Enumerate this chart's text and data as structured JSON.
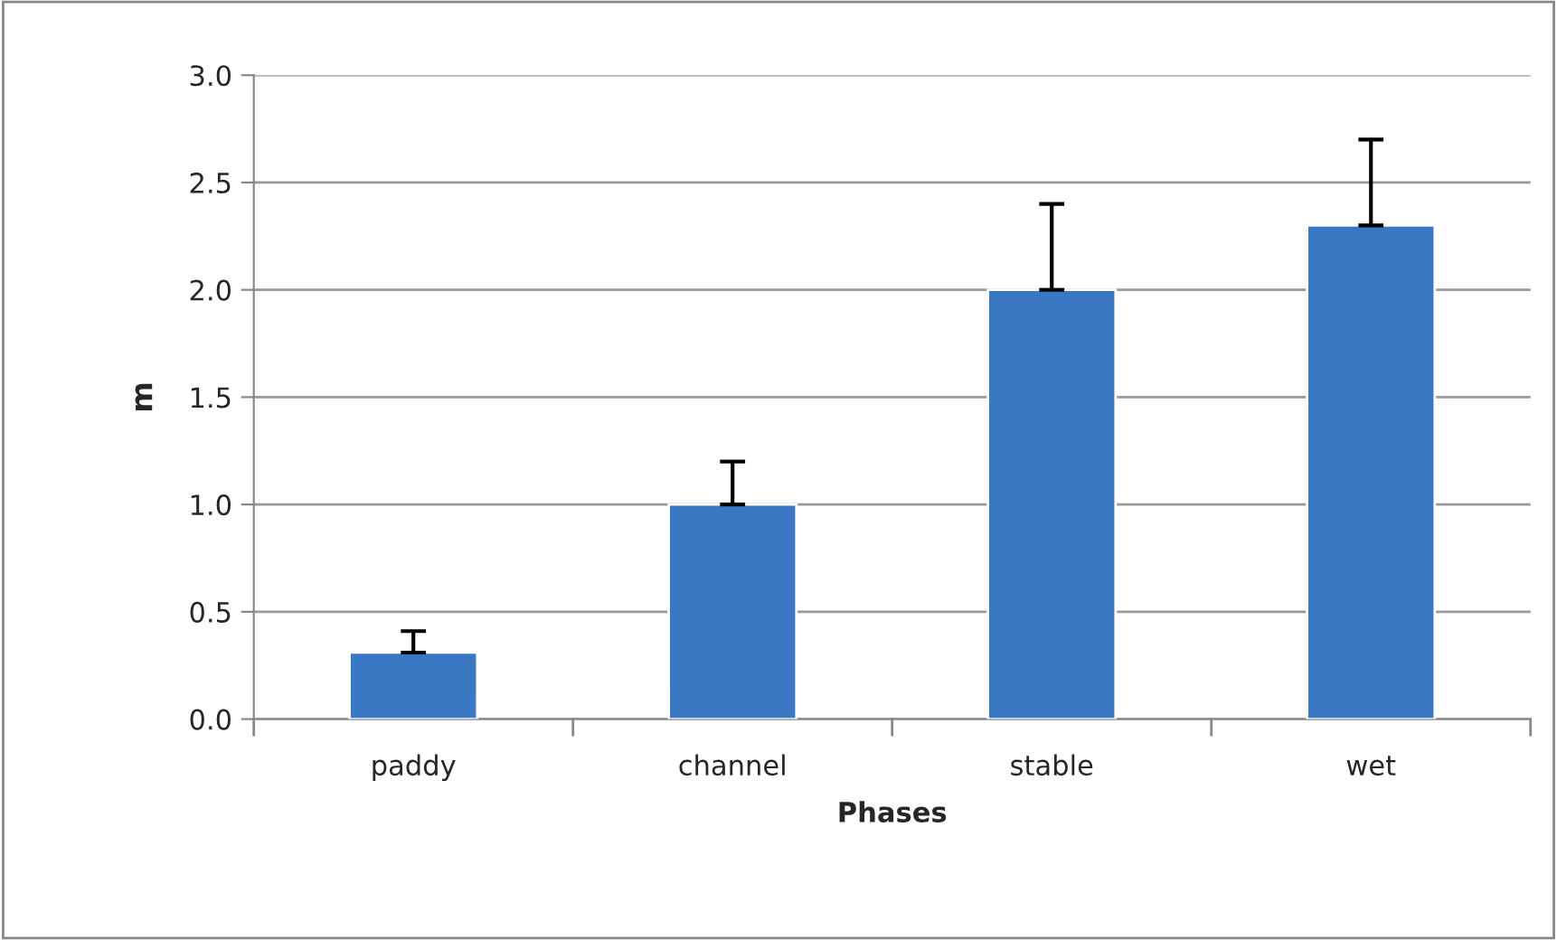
{
  "chart_data": {
    "type": "bar",
    "xlabel": "Phases",
    "ylabel": "m",
    "categories": [
      "paddy",
      "channel",
      "stable",
      "wet"
    ],
    "values": [
      0.31,
      1.0,
      2.0,
      2.3
    ],
    "errors": [
      [
        0.31,
        0.41
      ],
      [
        1.0,
        1.2
      ],
      [
        2.0,
        2.4
      ],
      [
        2.3,
        2.7
      ]
    ],
    "color": "#3a78c3",
    "ylim": [
      0,
      3.0
    ],
    "yticks": [
      {
        "value": 0,
        "label": "0.0"
      },
      {
        "value": 0.5,
        "label": "0.5"
      },
      {
        "value": 1.0,
        "label": "1.0"
      },
      {
        "value": 1.5,
        "label": "1.5"
      },
      {
        "value": 2.0,
        "label": "2.0"
      },
      {
        "value": 2.5,
        "label": "2.5"
      },
      {
        "value": 3.0,
        "label": "3.0"
      }
    ],
    "grid": "y",
    "legend": false
  }
}
